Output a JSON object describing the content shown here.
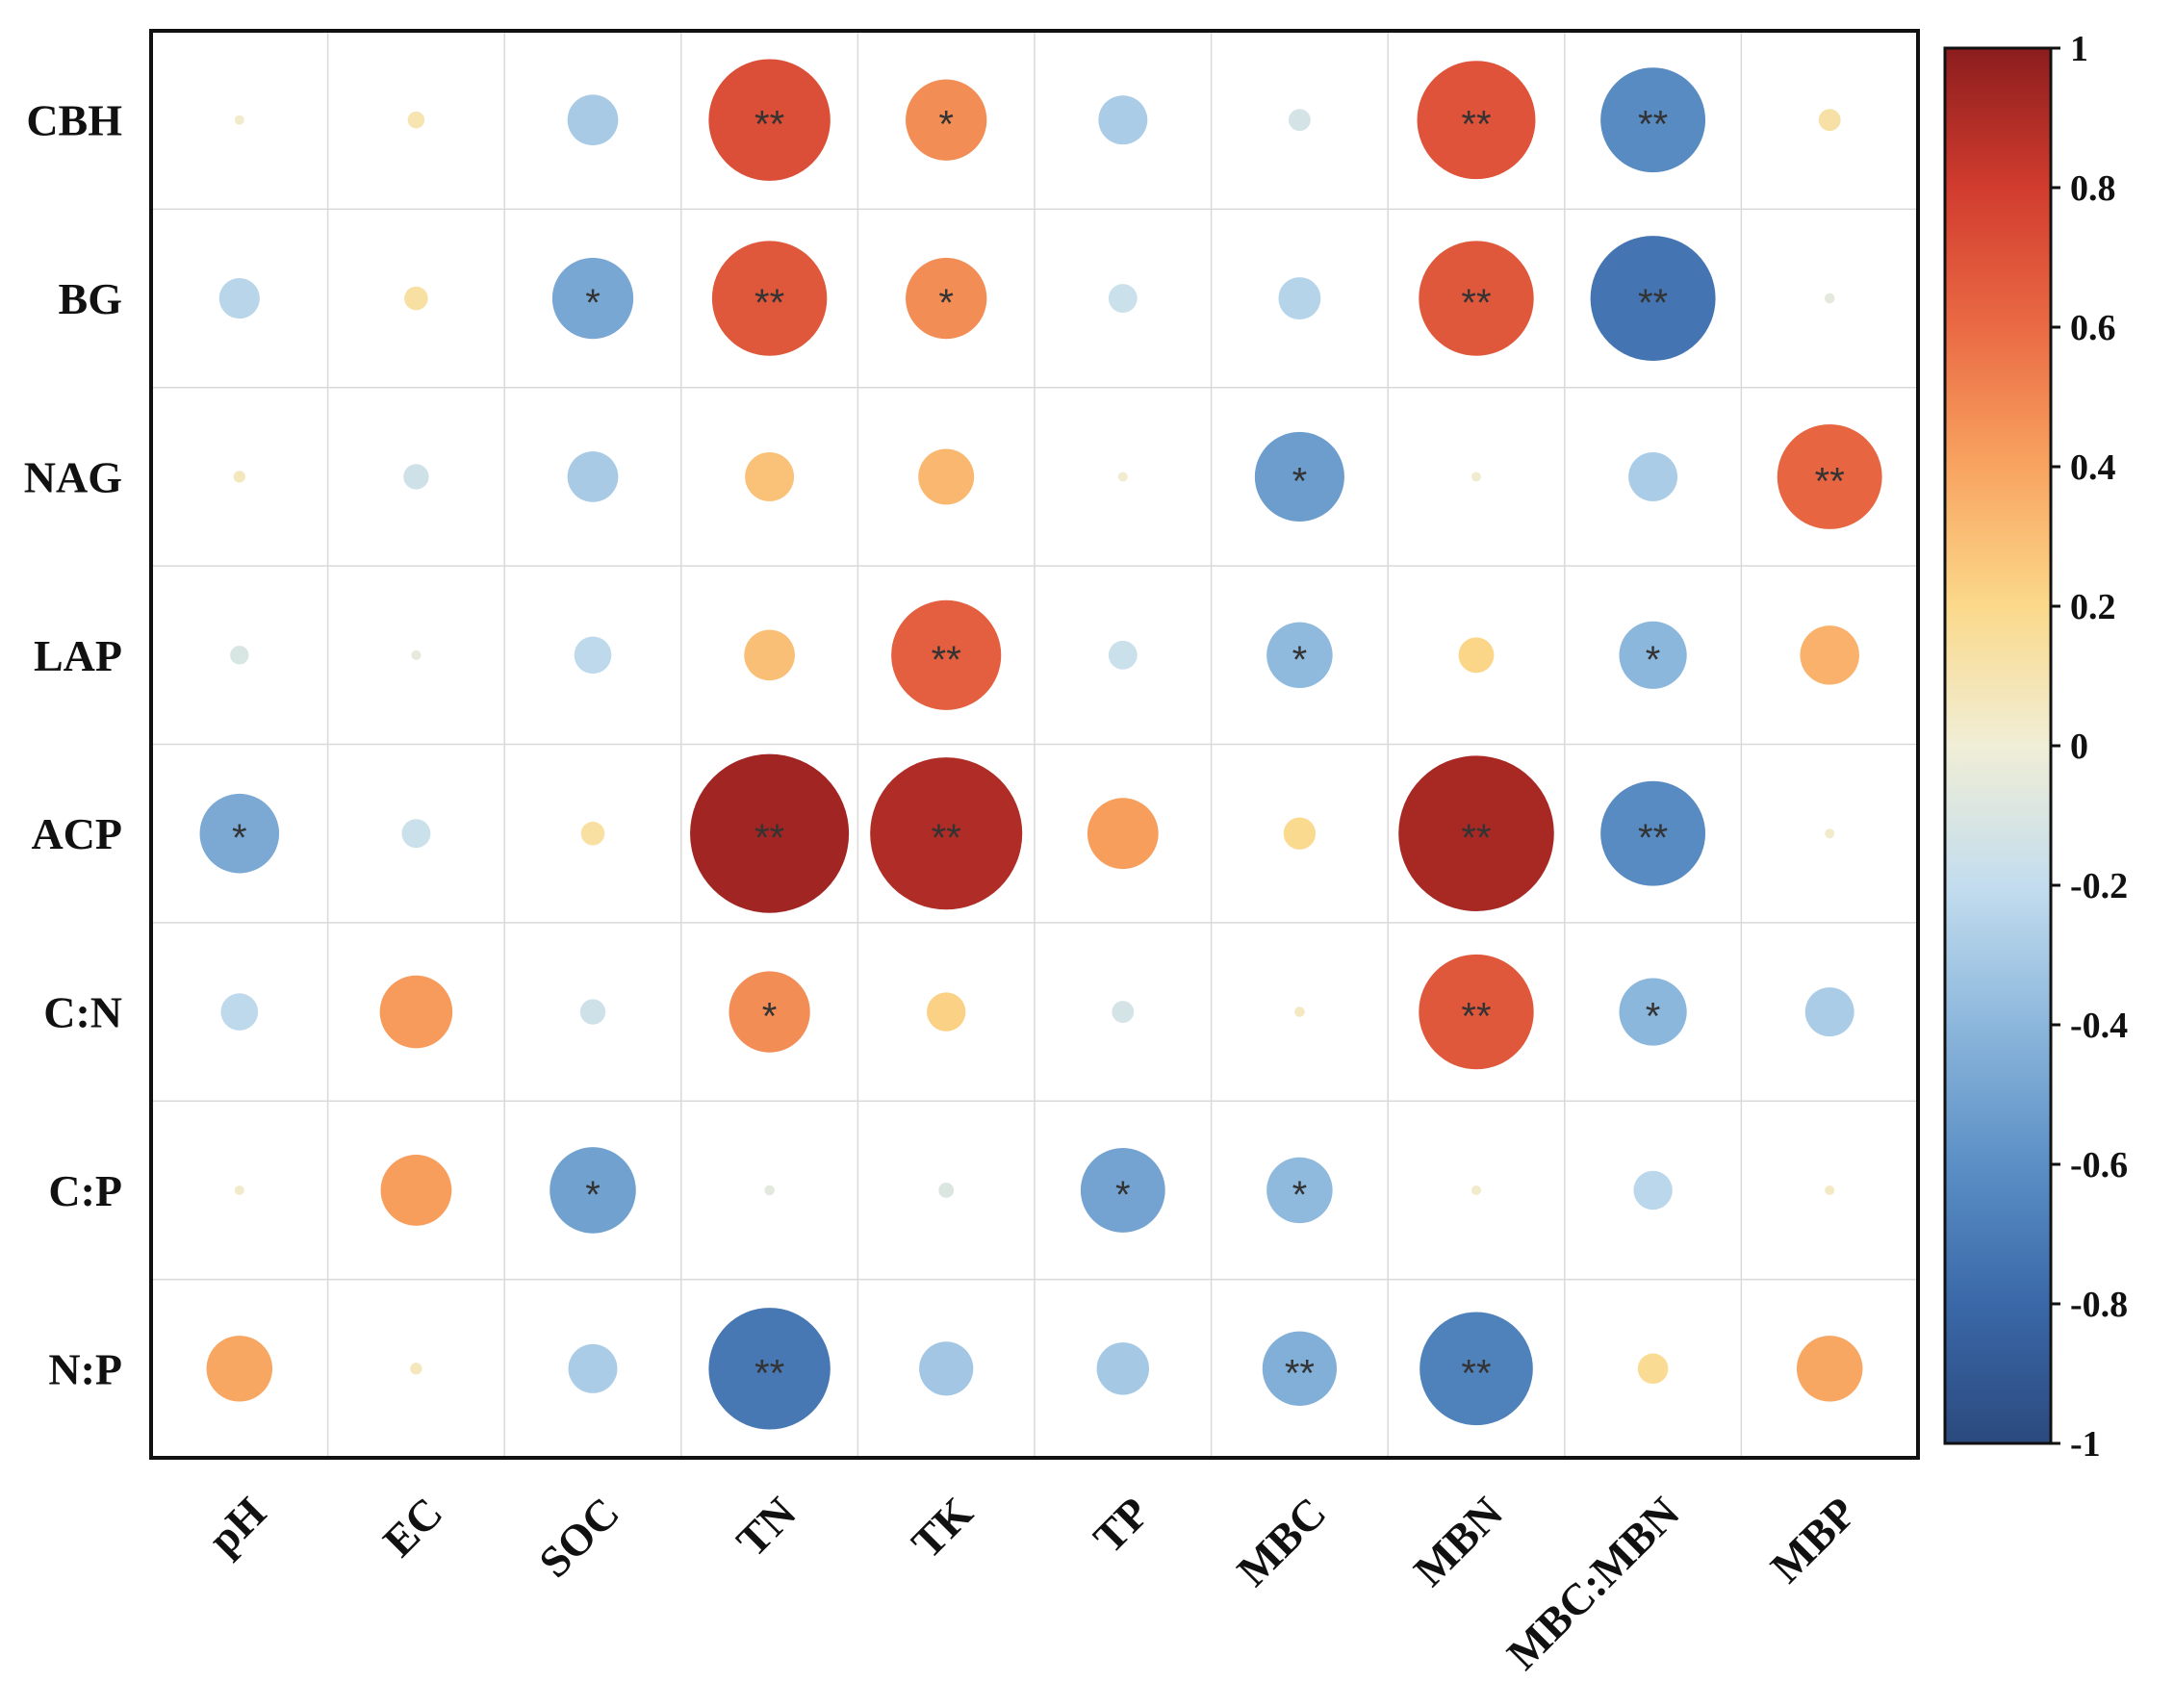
{
  "chart_data": {
    "type": "heatmap",
    "title": "",
    "xlabel": "",
    "ylabel": "",
    "rows": [
      "CBH",
      "BG",
      "NAG",
      "LAP",
      "ACP",
      "C:N",
      "C:P",
      "N:P"
    ],
    "columns": [
      "pH",
      "EC",
      "SOC",
      "TN",
      "TK",
      "TP",
      "MBC",
      "MBN",
      "MBC:MBN",
      "MBP"
    ],
    "values": [
      [
        0.03,
        0.1,
        -0.3,
        0.72,
        0.48,
        -0.29,
        -0.13,
        0.7,
        -0.62,
        0.13
      ],
      [
        -0.24,
        0.14,
        -0.48,
        0.68,
        0.48,
        -0.17,
        -0.25,
        0.68,
        -0.74,
        -0.06
      ],
      [
        0.07,
        -0.15,
        -0.3,
        0.29,
        0.33,
        0.02,
        -0.53,
        0.02,
        -0.29,
        0.62
      ],
      [
        -0.11,
        -0.05,
        -0.22,
        0.3,
        0.65,
        -0.17,
        -0.39,
        0.21,
        -0.4,
        0.35
      ],
      [
        -0.47,
        -0.17,
        0.14,
        0.94,
        0.9,
        0.42,
        0.19,
        0.92,
        -0.62,
        0.03
      ],
      [
        -0.22,
        0.43,
        -0.15,
        0.48,
        0.23,
        -0.13,
        0.06,
        0.68,
        -0.4,
        -0.29
      ],
      [
        0.03,
        0.42,
        -0.51,
        -0.06,
        -0.09,
        -0.5,
        -0.39,
        0.03,
        -0.23,
        0.05
      ],
      [
        0.39,
        0.07,
        -0.29,
        -0.72,
        -0.32,
        -0.31,
        -0.44,
        -0.67,
        0.18,
        0.39
      ]
    ],
    "significance": [
      [
        "",
        "",
        "",
        "**",
        "*",
        "",
        "",
        "**",
        "**",
        ""
      ],
      [
        "",
        "",
        "*",
        "**",
        "*",
        "",
        "",
        "**",
        "**",
        ""
      ],
      [
        "",
        "",
        "",
        "",
        "",
        "",
        "*",
        "",
        "",
        "**"
      ],
      [
        "",
        "",
        "",
        "",
        "**",
        "",
        "*",
        "",
        "*",
        ""
      ],
      [
        "*",
        "",
        "",
        "**",
        "**",
        "",
        "",
        "**",
        "**",
        ""
      ],
      [
        "",
        "",
        "",
        "*",
        "",
        "",
        "",
        "**",
        "*",
        ""
      ],
      [
        "",
        "",
        "*",
        "",
        "",
        "*",
        "*",
        "",
        "",
        ""
      ],
      [
        "",
        "",
        "",
        "**",
        "",
        "",
        "**",
        "**",
        "",
        ""
      ]
    ],
    "colorbar": {
      "range": [
        -1,
        1
      ],
      "ticks": [
        "1",
        "0.8",
        "0.6",
        "0.4",
        "0.2",
        "0",
        "-0.2",
        "-0.4",
        "-0.6",
        "-0.8",
        "-1"
      ],
      "tick_values": [
        1,
        0.8,
        0.6,
        0.4,
        0.2,
        0,
        -0.2,
        -0.4,
        -0.6,
        -0.8,
        -1
      ],
      "color_stops": [
        {
          "v": -1.0,
          "c": "#2b4a7e"
        },
        {
          "v": -0.8,
          "c": "#3a68a8"
        },
        {
          "v": -0.6,
          "c": "#5b8fc5"
        },
        {
          "v": -0.4,
          "c": "#8cb7dc"
        },
        {
          "v": -0.2,
          "c": "#c3ddee"
        },
        {
          "v": 0.0,
          "c": "#f0eed6"
        },
        {
          "v": 0.2,
          "c": "#fbd98b"
        },
        {
          "v": 0.4,
          "c": "#f8a460"
        },
        {
          "v": 0.6,
          "c": "#ea6a44"
        },
        {
          "v": 0.8,
          "c": "#d13c2e"
        },
        {
          "v": 1.0,
          "c": "#8c1d1e"
        }
      ]
    },
    "grid": true
  }
}
